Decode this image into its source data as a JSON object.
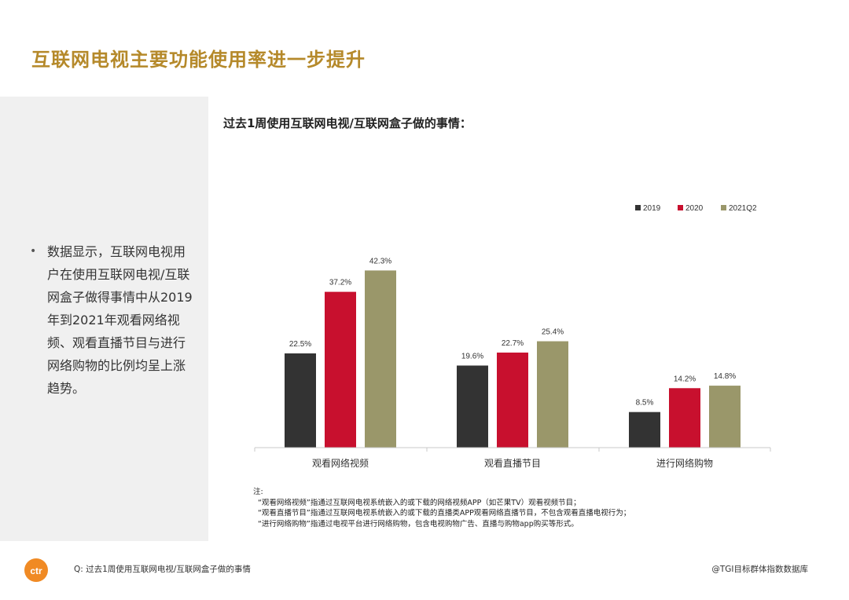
{
  "page_title": "互联网电视主要功能使用率进一步提升",
  "bullet": "数据显示，互联网电视用户在使用互联网电视/互联网盒子做得事情中从2019年到2021年观看网络视频、观看直播节目与进行网络购物的比例均呈上涨趋势。",
  "chart_title": "过去1周使用互联网电视/互联网盒子做的事情：",
  "chart_data": {
    "type": "bar",
    "categories": [
      "观看网络视频",
      "观看直播节目",
      "进行网络购物"
    ],
    "series": [
      {
        "name": "2019",
        "values": [
          22.5,
          19.6,
          8.5
        ],
        "labels": [
          "22.5%",
          "19.6%",
          "8.5%"
        ],
        "color": "#333333"
      },
      {
        "name": "2020",
        "values": [
          37.2,
          22.7,
          14.2
        ],
        "labels": [
          "37.2%",
          "22.7%",
          "14.2%"
        ],
        "color": "#c8102e"
      },
      {
        "name": "2021Q2",
        "values": [
          42.3,
          25.4,
          14.8
        ],
        "labels": [
          "42.3%",
          "25.4%",
          "14.8%"
        ],
        "color": "#9a976a"
      }
    ],
    "ylim": [
      0,
      45
    ],
    "legend_position": "top-right"
  },
  "notes": {
    "heading": "注:",
    "lines": [
      "“观看网络视频”指通过互联网电视系统嵌入的或下载的网络视频APP（如芒果TV）观看视频节目；",
      "“观看直播节目”指通过互联网电视系统嵌入的或下载的直播类APP观看网络直播节目，不包含观看直播电视行为；",
      "“进行网络购物”指通过电视平台进行网络购物，包含电视购物广告、直播与购物app购买等形式。"
    ]
  },
  "footer": {
    "question": "Q:  过去1周使用互联网电视/互联网盒子做的事情",
    "source": "@TGI目标群体指数数据库",
    "logo_text": "ctr"
  }
}
